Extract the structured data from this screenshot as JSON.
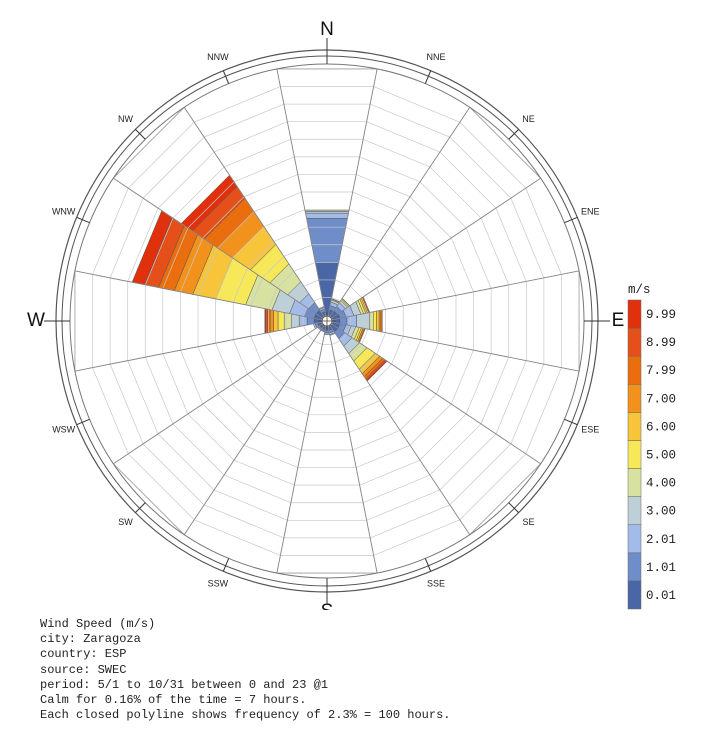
{
  "chart_data": {
    "type": "wind-rose",
    "directions": [
      "N",
      "NNE",
      "NE",
      "ENE",
      "E",
      "ESE",
      "SE",
      "SSE",
      "S",
      "SSW",
      "SW",
      "WSW",
      "W",
      "WNW",
      "NW",
      "NNW"
    ],
    "cardinal_directions": [
      "N",
      "E",
      "S",
      "W"
    ],
    "units": "m/s",
    "speed_bins": [
      "0.01",
      "1.01",
      "2.01",
      "3.00",
      "4.00",
      "5.00",
      "6.00",
      "7.00",
      "7.99",
      "8.99",
      "9.99"
    ],
    "bin_colors": [
      "#4a66a6",
      "#6f8ec9",
      "#a2bbe8",
      "#bdd0d8",
      "#d8e2a0",
      "#f7e85a",
      "#f7c43a",
      "#f2921c",
      "#eb6e0e",
      "#e5501a",
      "#e0310c"
    ],
    "frequency_unit": "hours",
    "ring_step_hours": 100,
    "max_hours": 1400,
    "hours_by_direction": [
      [
        300,
        250,
        30,
        10,
        5,
        0,
        0,
        0,
        0,
        0,
        0
      ],
      [
        30,
        25,
        20,
        12,
        5,
        3,
        0,
        0,
        0,
        0,
        0
      ],
      [
        35,
        30,
        25,
        15,
        8,
        5,
        2,
        0,
        0,
        0,
        0
      ],
      [
        40,
        35,
        45,
        40,
        15,
        12,
        10,
        8,
        5,
        0,
        0
      ],
      [
        40,
        40,
        55,
        75,
        20,
        18,
        15,
        10,
        8,
        0,
        0
      ],
      [
        40,
        35,
        30,
        25,
        20,
        12,
        10,
        8,
        5,
        0,
        0
      ],
      [
        40,
        45,
        50,
        50,
        50,
        55,
        30,
        20,
        15,
        10,
        5
      ],
      [
        20,
        15,
        10,
        5,
        0,
        0,
        0,
        0,
        0,
        0,
        0
      ],
      [
        20,
        15,
        10,
        0,
        0,
        0,
        0,
        0,
        0,
        0,
        0
      ],
      [
        15,
        10,
        5,
        0,
        0,
        0,
        0,
        0,
        0,
        0,
        0
      ],
      [
        15,
        10,
        5,
        0,
        0,
        0,
        0,
        0,
        0,
        0,
        0
      ],
      [
        20,
        15,
        10,
        0,
        0,
        0,
        0,
        0,
        0,
        0,
        0
      ],
      [
        40,
        40,
        45,
        45,
        40,
        35,
        25,
        20,
        15,
        10,
        5
      ],
      [
        40,
        60,
        80,
        100,
        150,
        170,
        130,
        105,
        90,
        80,
        70
      ],
      [
        40,
        50,
        60,
        80,
        120,
        130,
        120,
        100,
        90,
        80,
        75
      ],
      [
        20,
        15,
        10,
        5,
        0,
        0,
        0,
        0,
        0,
        0,
        0
      ]
    ]
  },
  "info": {
    "line1": "Wind Speed (m/s)",
    "line2": "city: Zaragoza",
    "line3": "country: ESP",
    "line4": "source: SWEC",
    "line5": "period: 5/1 to 10/31 between 0 and 23 @1",
    "line6": "Calm for 0.16% of the time = 7 hours.",
    "line7": "Each closed polyline shows frequency of 2.3% = 100 hours."
  }
}
